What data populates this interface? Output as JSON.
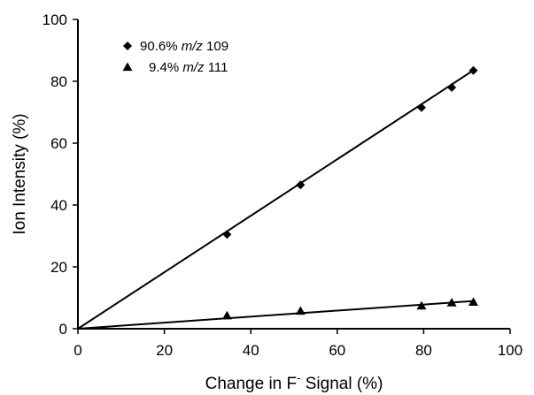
{
  "chart_data": {
    "type": "scatter",
    "xlabel": {
      "pre": "Change in F",
      "sup": "-",
      "post": " Signal (%)"
    },
    "ylabel": "Ion Intensity (%)",
    "xlim": [
      0,
      100
    ],
    "ylim": [
      0,
      100
    ],
    "x_ticks": [
      0,
      20,
      40,
      60,
      80,
      100
    ],
    "y_ticks": [
      0,
      20,
      40,
      60,
      80,
      100
    ],
    "x_tick_labels": [
      "0",
      "20",
      "40",
      "60",
      "80",
      "100"
    ],
    "y_tick_labels": [
      "0",
      "20",
      "40",
      "60",
      "80",
      "100"
    ],
    "grid": false,
    "legend_position": "top-left",
    "series": [
      {
        "name": "90.6% m/z 109",
        "legend": {
          "prefix": "90.6% ",
          "italic": "m/z",
          "suffix": " 109"
        },
        "marker": "diamond",
        "color": "#000000",
        "x": [
          34.5,
          51.5,
          79.5,
          86.5,
          91.5
        ],
        "y": [
          30.5,
          46.5,
          71.5,
          78.0,
          83.5
        ],
        "trendline": {
          "x": [
            0,
            92
          ],
          "y": [
            0,
            84.0
          ]
        }
      },
      {
        "name": "9.4% m/z 111",
        "legend": {
          "prefix": "9.4% ",
          "italic": "m/z",
          "suffix": " 111"
        },
        "marker": "triangle",
        "color": "#000000",
        "x": [
          34.5,
          51.5,
          79.5,
          86.5,
          91.5
        ],
        "y": [
          4.2,
          5.7,
          7.4,
          8.4,
          8.6
        ],
        "trendline": {
          "x": [
            0,
            92
          ],
          "y": [
            0,
            9.0
          ]
        }
      }
    ]
  }
}
